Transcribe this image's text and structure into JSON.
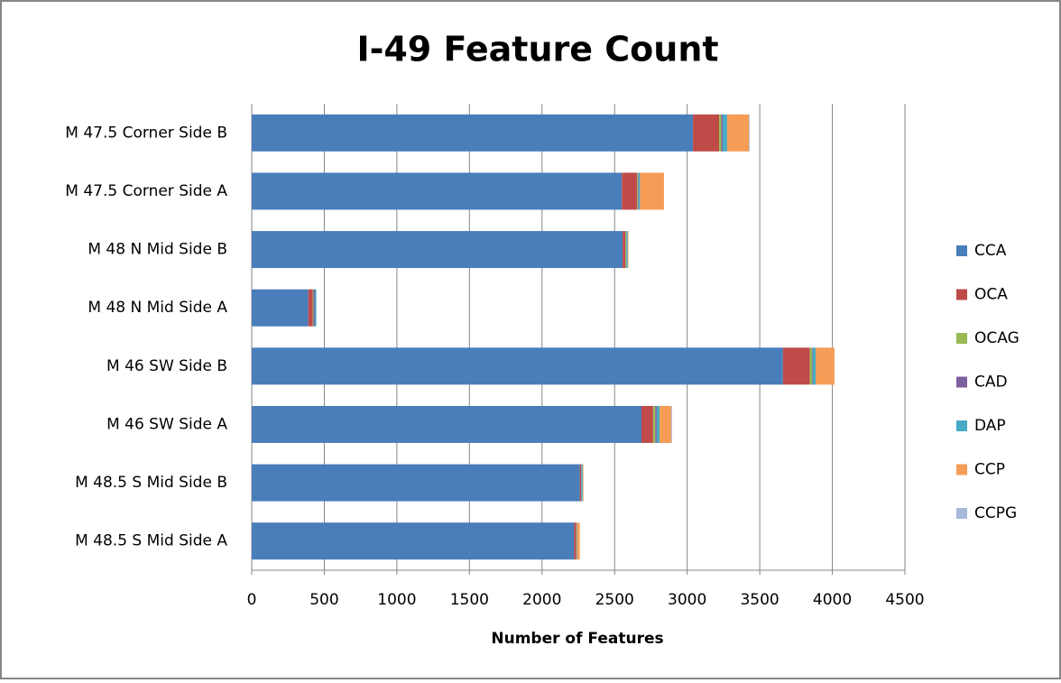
{
  "chart_data": {
    "type": "stacked-bar-horizontal",
    "title": "I-49 Feature Count",
    "x_label": "Number of Features",
    "categories": [
      "M 47.5 Corner Side B",
      "M 47.5 Corner Side A",
      "M 48 N Mid Side B",
      "M 48 N Mid Side A",
      "M 46 SW Side B",
      "M 46 SW Side A",
      "M 48.5 S Mid Side B",
      "M 48.5 S Mid Side A"
    ],
    "series": [
      {
        "name": "CCA",
        "color": "#4a7ebb",
        "values": [
          3040,
          2550,
          2555,
          390,
          3660,
          2685,
          2260,
          2220
        ]
      },
      {
        "name": "OCA",
        "color": "#be4b48",
        "values": [
          180,
          105,
          20,
          30,
          185,
          80,
          10,
          15
        ]
      },
      {
        "name": "OCAG",
        "color": "#98b954",
        "values": [
          15,
          5,
          5,
          5,
          15,
          15,
          0,
          0
        ]
      },
      {
        "name": "CAD",
        "color": "#7d60a0",
        "values": [
          10,
          5,
          0,
          10,
          5,
          10,
          0,
          0
        ]
      },
      {
        "name": "DAP",
        "color": "#46aac5",
        "values": [
          30,
          10,
          10,
          10,
          20,
          20,
          10,
          5
        ]
      },
      {
        "name": "CCP",
        "color": "#f59d56",
        "values": [
          150,
          165,
          5,
          0,
          130,
          80,
          5,
          20
        ]
      },
      {
        "name": "CCPG",
        "color": "#a5b9da",
        "values": [
          5,
          0,
          0,
          0,
          0,
          5,
          0,
          0
        ]
      }
    ],
    "xlim": [
      0,
      4500
    ],
    "xticks": [
      0,
      500,
      1000,
      1500,
      2000,
      2500,
      3000,
      3500,
      4000,
      4500
    ],
    "grid": true,
    "legend": "right"
  }
}
